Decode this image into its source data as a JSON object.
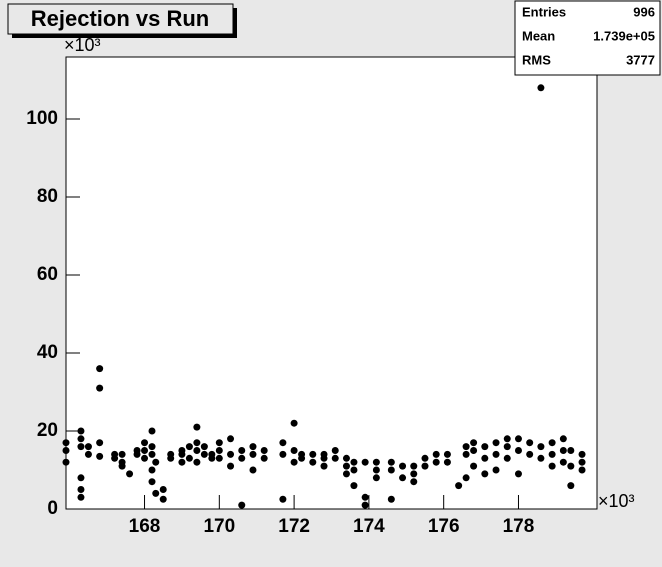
{
  "chart_data": {
    "type": "scatter",
    "title": "Rejection vs Run",
    "x_multiplier": "×10³",
    "y_multiplier": "×10³",
    "stats": {
      "entries_label": "Entries",
      "entries": 996,
      "mean_label": "Mean",
      "mean": {
        "value": 173900,
        "label": "1.739e+05"
      },
      "rms_label": "RMS",
      "rms": 3777
    },
    "xlim": [
      165.9,
      180.1
    ],
    "ylim": [
      0,
      115.9
    ],
    "xticks": [
      168,
      170,
      172,
      174,
      176,
      178
    ],
    "yticks": [
      0,
      20,
      40,
      60,
      80,
      100
    ],
    "series": [
      {
        "color": "#000000",
        "x": [
          165.9,
          165.9,
          165.9,
          166.3,
          166.3,
          166.3,
          166.3,
          166.3,
          166.3,
          166.5,
          166.5,
          166.8,
          166.8,
          166.8,
          166.8,
          167.2,
          167.2,
          167.4,
          167.4,
          167.4,
          167.6,
          167.8,
          167.8,
          168.0,
          168.0,
          168.0,
          168.2,
          168.2,
          168.2,
          168.2,
          168.2,
          168.3,
          168.3,
          168.5,
          168.5,
          168.7,
          168.7,
          169.0,
          169.0,
          169.0,
          169.2,
          169.2,
          169.4,
          169.4,
          169.4,
          169.4,
          169.6,
          169.6,
          169.8,
          169.8,
          170.0,
          170.0,
          170.0,
          170.3,
          170.3,
          170.3,
          170.6,
          170.6,
          170.6,
          170.9,
          170.9,
          170.9,
          171.2,
          171.2,
          171.7,
          171.7,
          171.7,
          172.0,
          172.0,
          172.0,
          172.2,
          172.2,
          172.5,
          172.5,
          172.8,
          172.8,
          172.8,
          173.1,
          173.1,
          173.4,
          173.4,
          173.4,
          173.6,
          173.6,
          173.6,
          173.9,
          173.9,
          173.9,
          174.2,
          174.2,
          174.2,
          174.6,
          174.6,
          174.6,
          174.9,
          174.9,
          175.2,
          175.2,
          175.2,
          175.5,
          175.5,
          175.8,
          175.8,
          176.1,
          176.1,
          176.4,
          176.6,
          176.6,
          176.6,
          176.8,
          176.8,
          176.8,
          177.1,
          177.1,
          177.1,
          177.4,
          177.4,
          177.4,
          177.7,
          177.7,
          177.7,
          178.0,
          178.0,
          178.0,
          178.3,
          178.3,
          178.6,
          178.6,
          178.6,
          178.9,
          178.9,
          178.9,
          179.2,
          179.2,
          179.2,
          179.4,
          179.4,
          179.4,
          179.7,
          179.7,
          179.7
        ],
        "values": [
          17,
          15,
          12,
          20,
          18,
          16,
          8,
          5,
          3,
          16,
          14,
          36,
          31,
          17,
          13.5,
          14,
          13,
          14,
          12,
          11,
          9,
          15,
          14,
          17,
          15,
          13,
          20,
          16,
          14,
          10,
          7,
          12,
          4,
          5,
          2.5,
          14,
          13,
          15,
          14,
          12,
          16,
          13,
          17,
          15,
          21,
          12,
          16,
          14,
          14,
          13,
          17,
          15,
          13,
          18,
          14,
          11,
          15,
          13,
          1,
          16,
          14,
          10,
          15,
          13,
          17,
          14,
          2.5,
          22,
          15,
          12,
          14,
          13,
          14,
          12,
          14,
          13,
          11,
          15,
          13,
          13,
          11,
          9,
          12,
          6,
          10,
          12,
          3,
          1,
          12,
          10,
          8,
          12,
          10,
          2.5,
          11,
          8,
          11,
          9,
          7,
          13,
          11,
          14,
          12,
          14,
          12,
          6,
          16,
          14,
          8,
          17,
          15,
          11,
          16,
          13,
          9,
          17,
          14,
          10,
          18,
          16,
          13,
          18,
          15,
          9,
          17,
          14,
          108,
          16,
          13,
          17,
          14,
          11,
          18,
          15,
          12,
          15,
          11,
          6,
          14,
          12,
          10
        ]
      }
    ]
  }
}
